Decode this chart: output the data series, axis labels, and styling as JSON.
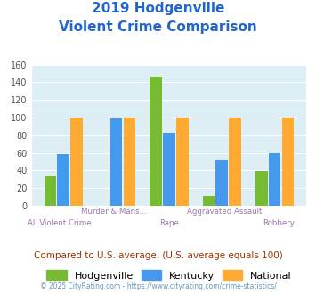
{
  "title_line1": "2019 Hodgenville",
  "title_line2": "Violent Crime Comparison",
  "title_color": "#2266cc",
  "categories": [
    "All Violent Crime",
    "Murder & Mans...",
    "Rape",
    "Aggravated Assault",
    "Robbery"
  ],
  "cat_top": [
    "",
    "Murder & Mans...",
    "",
    "Aggravated Assault",
    ""
  ],
  "cat_bottom": [
    "All Violent Crime",
    "",
    "Rape",
    "",
    "Robbery"
  ],
  "hodgenville": [
    34,
    0,
    146,
    11,
    39
  ],
  "kentucky": [
    59,
    99,
    83,
    52,
    60
  ],
  "national": [
    100,
    100,
    100,
    100,
    100
  ],
  "hodgenville_color": "#77bb33",
  "kentucky_color": "#4499ee",
  "national_color": "#ffaa33",
  "ylim": [
    0,
    160
  ],
  "yticks": [
    0,
    20,
    40,
    60,
    80,
    100,
    120,
    140,
    160
  ],
  "plot_bg": "#ddeef5",
  "footer_text": "Compared to U.S. average. (U.S. average equals 100)",
  "footer_color": "#993300",
  "copyright_text": "© 2025 CityRating.com - https://www.cityrating.com/crime-statistics/",
  "copyright_color": "#6699bb",
  "legend_labels": [
    "Hodgenville",
    "Kentucky",
    "National"
  ]
}
